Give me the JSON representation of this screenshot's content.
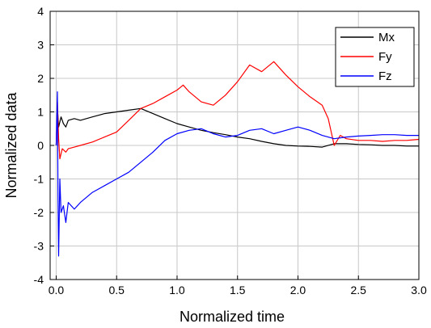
{
  "chart_data": {
    "type": "line",
    "title": "",
    "xlabel": "Normalized time",
    "ylabel": "Normalized data",
    "xlim": [
      -0.05,
      3.0
    ],
    "ylim": [
      -4,
      4
    ],
    "xticks": [
      "0.0",
      "0.5",
      "1.0",
      "1.5",
      "2.0",
      "2.5",
      "3.0"
    ],
    "xtick_values": [
      0.0,
      0.5,
      1.0,
      1.5,
      2.0,
      2.5,
      3.0
    ],
    "yticks": [
      "-4",
      "-3",
      "-2",
      "-1",
      "0",
      "1",
      "2",
      "3",
      "4"
    ],
    "ytick_values": [
      -4,
      -3,
      -2,
      -1,
      0,
      1,
      2,
      3,
      4
    ],
    "grid": true,
    "legend_position": "top-right",
    "series": [
      {
        "name": "Mx",
        "color": "#000000",
        "points": [
          [
            0.0,
            0.0
          ],
          [
            0.01,
            1.1
          ],
          [
            0.02,
            0.55
          ],
          [
            0.04,
            0.85
          ],
          [
            0.06,
            0.65
          ],
          [
            0.08,
            0.55
          ],
          [
            0.1,
            0.75
          ],
          [
            0.15,
            0.8
          ],
          [
            0.2,
            0.75
          ],
          [
            0.3,
            0.85
          ],
          [
            0.4,
            0.95
          ],
          [
            0.5,
            1.0
          ],
          [
            0.6,
            1.05
          ],
          [
            0.7,
            1.1
          ],
          [
            0.8,
            0.95
          ],
          [
            0.9,
            0.8
          ],
          [
            1.0,
            0.65
          ],
          [
            1.1,
            0.55
          ],
          [
            1.2,
            0.45
          ],
          [
            1.3,
            0.38
          ],
          [
            1.4,
            0.32
          ],
          [
            1.5,
            0.25
          ],
          [
            1.6,
            0.2
          ],
          [
            1.7,
            0.12
          ],
          [
            1.8,
            0.05
          ],
          [
            1.9,
            0.0
          ],
          [
            2.0,
            -0.02
          ],
          [
            2.1,
            -0.03
          ],
          [
            2.2,
            -0.05
          ],
          [
            2.3,
            0.05
          ],
          [
            2.4,
            0.05
          ],
          [
            2.5,
            0.03
          ],
          [
            2.6,
            0.02
          ],
          [
            2.7,
            0.0
          ],
          [
            2.8,
            0.0
          ],
          [
            2.9,
            -0.02
          ],
          [
            3.0,
            -0.02
          ]
        ]
      },
      {
        "name": "Fy",
        "color": "#ff0000",
        "points": [
          [
            0.0,
            0.0
          ],
          [
            0.01,
            1.3
          ],
          [
            0.02,
            0.2
          ],
          [
            0.03,
            -0.4
          ],
          [
            0.05,
            -0.1
          ],
          [
            0.08,
            -0.2
          ],
          [
            0.1,
            -0.1
          ],
          [
            0.15,
            -0.05
          ],
          [
            0.2,
            0.0
          ],
          [
            0.3,
            0.1
          ],
          [
            0.4,
            0.25
          ],
          [
            0.5,
            0.4
          ],
          [
            0.6,
            0.75
          ],
          [
            0.7,
            1.1
          ],
          [
            0.8,
            1.25
          ],
          [
            0.9,
            1.45
          ],
          [
            1.0,
            1.65
          ],
          [
            1.05,
            1.8
          ],
          [
            1.1,
            1.6
          ],
          [
            1.2,
            1.3
          ],
          [
            1.3,
            1.2
          ],
          [
            1.4,
            1.5
          ],
          [
            1.5,
            1.9
          ],
          [
            1.6,
            2.4
          ],
          [
            1.7,
            2.2
          ],
          [
            1.8,
            2.5
          ],
          [
            1.9,
            2.1
          ],
          [
            2.0,
            1.75
          ],
          [
            2.1,
            1.45
          ],
          [
            2.2,
            1.2
          ],
          [
            2.25,
            0.8
          ],
          [
            2.3,
            0.0
          ],
          [
            2.35,
            0.3
          ],
          [
            2.4,
            0.2
          ],
          [
            2.5,
            0.15
          ],
          [
            2.6,
            0.15
          ],
          [
            2.7,
            0.12
          ],
          [
            2.8,
            0.15
          ],
          [
            2.9,
            0.15
          ],
          [
            3.0,
            0.18
          ]
        ]
      },
      {
        "name": "Fz",
        "color": "#0000ff",
        "points": [
          [
            0.0,
            0.0
          ],
          [
            0.01,
            1.6
          ],
          [
            0.015,
            -1.5
          ],
          [
            0.02,
            -3.3
          ],
          [
            0.03,
            -1.0
          ],
          [
            0.04,
            -2.0
          ],
          [
            0.06,
            -1.8
          ],
          [
            0.08,
            -2.3
          ],
          [
            0.1,
            -1.7
          ],
          [
            0.15,
            -1.9
          ],
          [
            0.2,
            -1.7
          ],
          [
            0.3,
            -1.4
          ],
          [
            0.4,
            -1.2
          ],
          [
            0.5,
            -1.0
          ],
          [
            0.6,
            -0.8
          ],
          [
            0.7,
            -0.5
          ],
          [
            0.8,
            -0.2
          ],
          [
            0.9,
            0.15
          ],
          [
            1.0,
            0.35
          ],
          [
            1.1,
            0.45
          ],
          [
            1.2,
            0.5
          ],
          [
            1.3,
            0.35
          ],
          [
            1.4,
            0.25
          ],
          [
            1.5,
            0.3
          ],
          [
            1.6,
            0.45
          ],
          [
            1.7,
            0.5
          ],
          [
            1.8,
            0.35
          ],
          [
            1.9,
            0.45
          ],
          [
            2.0,
            0.55
          ],
          [
            2.1,
            0.45
          ],
          [
            2.2,
            0.3
          ],
          [
            2.3,
            0.2
          ],
          [
            2.4,
            0.25
          ],
          [
            2.5,
            0.28
          ],
          [
            2.6,
            0.3
          ],
          [
            2.7,
            0.32
          ],
          [
            2.8,
            0.32
          ],
          [
            2.9,
            0.3
          ],
          [
            3.0,
            0.3
          ]
        ]
      }
    ]
  }
}
